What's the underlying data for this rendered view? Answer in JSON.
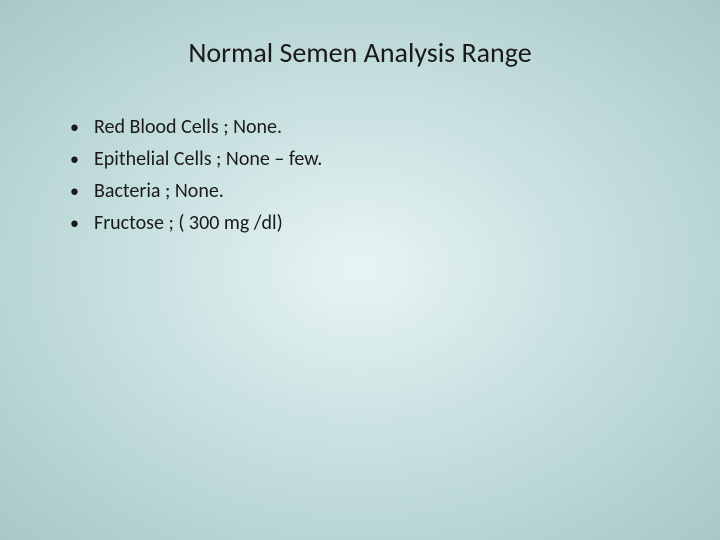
{
  "slide": {
    "title": "Normal Semen Analysis Range",
    "bullets": [
      "Red Blood Cells ; None.",
      "Epithelial Cells ; None – few.",
      "Bacteria ; None.",
      "Fructose ; ( 300 mg /dl)"
    ]
  },
  "style": {
    "background_gradient": {
      "inner": "#e8f4f4",
      "mid": "#c5dede",
      "outer": "#a8c8c8"
    },
    "title_fontsize": 28,
    "title_color": "#1a1a1a",
    "bullet_fontsize": 20,
    "bullet_color": "#1a1a1a",
    "font_family": "Calibri"
  }
}
